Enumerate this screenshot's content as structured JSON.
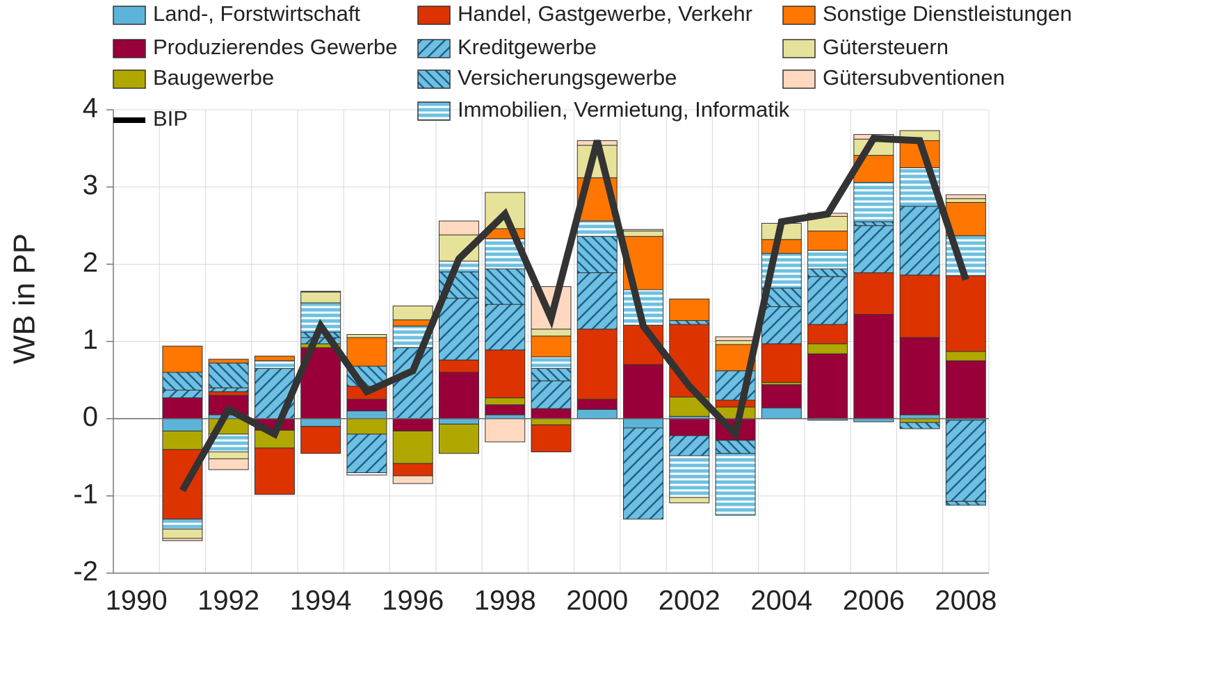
{
  "chart_data": {
    "type": "bar",
    "stacked": true,
    "y_label": "WB in PP",
    "categories": [
      "1990",
      null,
      "1992",
      null,
      "1994",
      null,
      "1996",
      null,
      "1998",
      null,
      "2000",
      null,
      "2002",
      null,
      "2004",
      null,
      "2006",
      null,
      "2008"
    ],
    "ylim": [
      -2,
      4
    ],
    "yticks": [
      -2,
      -1,
      0,
      1,
      2,
      3,
      4
    ],
    "grid": true,
    "series": [
      {
        "name": "Land-, Forstwirtschaft",
        "color": "#5cb5d8",
        "values": [
          null,
          -0.16,
          0.05,
          0,
          -0.1,
          0.1,
          0,
          -0.07,
          0.05,
          0,
          0.12,
          -0.12,
          0.03,
          0,
          0.14,
          -0.02,
          -0.04,
          0.05,
          -0.02
        ]
      },
      {
        "name": "Produzierendes Gewerbe",
        "color": "#99003a",
        "values": [
          null,
          0.27,
          0.25,
          -0.15,
          0.92,
          0.15,
          -0.16,
          0.6,
          0.13,
          0.13,
          0.13,
          0.7,
          -0.22,
          -0.28,
          0.3,
          0.84,
          1.35,
          1.0,
          0.75
        ]
      },
      {
        "name": "Baugewerbe",
        "color": "#b0a800",
        "values": [
          null,
          -0.24,
          -0.2,
          -0.23,
          0.05,
          -0.2,
          -0.42,
          -0.38,
          0.09,
          -0.08,
          0,
          0,
          0.25,
          0.15,
          0.03,
          0.13,
          0,
          -0.05,
          0.12
        ]
      },
      {
        "name": "Handel, Gastgewerbe, Verkehr",
        "color": "#dd3300",
        "values": [
          null,
          -0.9,
          0.05,
          -0.6,
          -0.35,
          0.17,
          -0.16,
          0.16,
          0.62,
          -0.35,
          0.91,
          0.51,
          0.94,
          0.09,
          0.5,
          0.25,
          0.54,
          0.81,
          0.98
        ]
      },
      {
        "name": "Kreditgewerbe",
        "color": "#6ec0e0",
        "hatch": "diagonal",
        "values": [
          null,
          0.1,
          0.05,
          0.65,
          0.08,
          -0.5,
          0.92,
          0.8,
          0.59,
          0.36,
          0.73,
          -1.18,
          -0.26,
          0.38,
          0.48,
          0.62,
          0.61,
          0.89,
          -1.05
        ]
      },
      {
        "name": "Versicherungsgewerbe",
        "color": "#6ec0e0",
        "hatch": "antidiagonal",
        "values": [
          null,
          0.23,
          0.32,
          0,
          0.07,
          0.26,
          0,
          0.34,
          0.46,
          0.16,
          0.47,
          0,
          0.05,
          -0.17,
          0.24,
          0.1,
          0.05,
          -0.08,
          -0.05
        ]
      },
      {
        "name": "Immobilien, Vermietung, Informatik",
        "color": "#6ec0e0",
        "hatch": "horizontal",
        "values": [
          null,
          -0.13,
          -0.23,
          0.1,
          0.38,
          -0.03,
          0.28,
          0.14,
          0.39,
          0.15,
          0.2,
          0.46,
          -0.54,
          -0.8,
          0.45,
          0.24,
          0.51,
          0.5,
          0.52
        ]
      },
      {
        "name": "Sonstige Dienstleistungen",
        "color": "#ff7700",
        "values": [
          null,
          0.34,
          0.05,
          0.06,
          0,
          0.37,
          0.08,
          0,
          0.13,
          0.27,
          0.56,
          0.69,
          0.28,
          0.34,
          0.18,
          0.25,
          0.35,
          0.35,
          0.43
        ]
      },
      {
        "name": "Gütersteuern",
        "color": "#e6e29a",
        "values": [
          null,
          -0.12,
          -0.09,
          0,
          0.14,
          0.04,
          0.18,
          0.34,
          0.47,
          0.09,
          0.42,
          0.07,
          -0.07,
          0.05,
          0.21,
          0.19,
          0.21,
          0.13,
          0.05
        ]
      },
      {
        "name": "Gütersubventionen",
        "color": "#ffd9bf",
        "values": [
          null,
          -0.03,
          -0.14,
          0,
          0.01,
          0,
          -0.1,
          0.18,
          -0.3,
          0.55,
          0.06,
          0.02,
          0,
          0.05,
          0,
          0.04,
          0.06,
          0,
          0.05
        ]
      },
      {
        "name": "BIP",
        "type": "line",
        "color": "#333333",
        "values": [
          null,
          -0.93,
          0.12,
          -0.2,
          1.2,
          0.35,
          0.62,
          2.07,
          2.65,
          1.3,
          3.6,
          1.2,
          0.42,
          -0.2,
          2.55,
          2.65,
          3.63,
          3.6,
          1.8
        ]
      }
    ]
  }
}
